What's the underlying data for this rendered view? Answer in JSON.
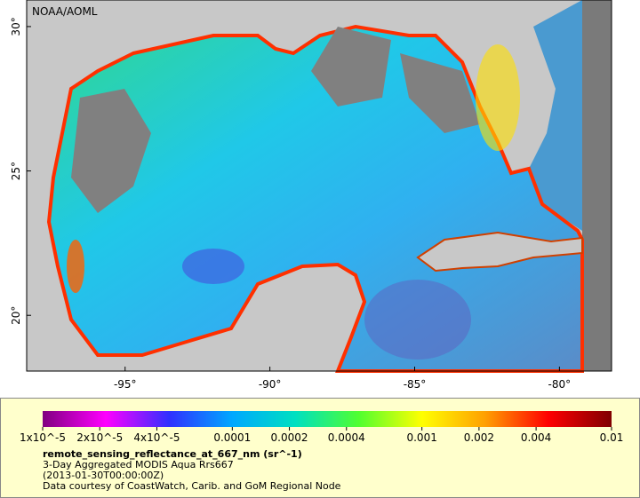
{
  "map": {
    "credit": "NOAA/AOML",
    "xlim": [
      -98.4,
      -78.2
    ],
    "ylim": [
      18.07,
      30.92
    ],
    "xticks": [
      {
        "value": -95,
        "label": "-95°"
      },
      {
        "value": -90,
        "label": "-90°"
      },
      {
        "value": -85,
        "label": "-85°"
      },
      {
        "value": -80,
        "label": "-80°"
      }
    ],
    "yticks": [
      {
        "value": 20,
        "label": "20°"
      },
      {
        "value": 25,
        "label": "25°"
      },
      {
        "value": 30,
        "label": "30°"
      }
    ]
  },
  "colorbar": {
    "log_scale": true,
    "clim": [
      1e-05,
      0.01
    ],
    "colors": [
      "#800080",
      "#ff00ff",
      "#3030ff",
      "#00a8ff",
      "#00e0c0",
      "#50ff30",
      "#ffff00",
      "#ffa000",
      "#ff0000",
      "#800000"
    ],
    "ticks": [
      {
        "value": 1e-05,
        "label": "1x10^-5"
      },
      {
        "value": 2e-05,
        "label": "2x10^-5"
      },
      {
        "value": 4e-05,
        "label": "4x10^-5"
      },
      0.0001,
      0.0002,
      0.0004,
      0.001,
      0.002,
      0.004,
      0.01
    ]
  },
  "caption": {
    "variable": "remote_sensing_reflectance_at_667_nm (sr^-1)",
    "lines": [
      "3-Day Aggregated MODIS Aqua Rrs667",
      "(2013-01-30T00:00:00Z)",
      "Data courtesy of CoastWatch, Carib. and GoM Regional Node"
    ]
  }
}
